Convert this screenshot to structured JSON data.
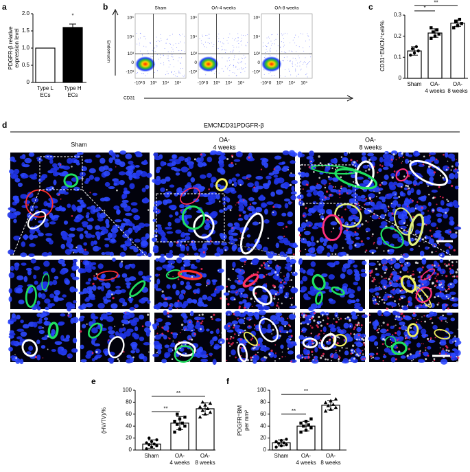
{
  "chart_data": [
    {
      "panel": "a",
      "type": "bar",
      "categories": [
        [
          "Type L",
          "ECs"
        ],
        [
          "Type H",
          "ECs"
        ]
      ],
      "values": [
        1.0,
        1.6
      ],
      "errors": [
        null,
        0.1
      ],
      "colors": [
        "#ffffff",
        "#000000"
      ],
      "ylabel": [
        "PDGFR-β relative",
        "expression level"
      ],
      "ylim": [
        0,
        2
      ],
      "yticks": [
        0,
        0.5,
        {
          "value": 1,
          "label": "1.0"
        },
        1.5,
        {
          "value": 2,
          "label": "2.0"
        }
      ],
      "annotations": [
        "*"
      ]
    },
    {
      "panel": "c",
      "type": "bar",
      "categories": [
        [
          "Sham"
        ],
        [
          "OA-",
          "4 weeks"
        ],
        [
          "OA-",
          "8 weeks"
        ]
      ],
      "values": [
        0.13,
        0.215,
        0.262
      ],
      "errors": [
        0.02,
        0.02,
        0.015
      ],
      "points": [
        [
          0.11,
          0.12,
          0.13,
          0.14,
          0.15
        ],
        [
          0.19,
          0.2,
          0.21,
          0.22,
          0.23,
          0.24
        ],
        [
          0.24,
          0.25,
          0.26,
          0.27,
          0.28
        ]
      ],
      "markers": [
        "circle",
        "square",
        "square"
      ],
      "colors": [
        "#ffffff",
        "#ffffff",
        "#ffffff"
      ],
      "ylabel": [
        "CD31⁺EMCN⁺cell/%"
      ],
      "ylim": [
        0,
        0.3
      ],
      "yticks": [
        0,
        0.1,
        0.2,
        0.3
      ],
      "annotations": [
        "*",
        "**"
      ]
    },
    {
      "panel": "e",
      "type": "bar",
      "categories": [
        [
          "Sham"
        ],
        [
          "OA-",
          "4 weeks"
        ],
        [
          "OA-",
          "8 weeks"
        ]
      ],
      "values": [
        10,
        45,
        69
      ],
      "errors": [
        7,
        11,
        10
      ],
      "points": [
        [
          2,
          5,
          7,
          9,
          10,
          12,
          14,
          17,
          20
        ],
        [
          30,
          35,
          40,
          43,
          45,
          48,
          52,
          55,
          60
        ],
        [
          55,
          60,
          63,
          66,
          69,
          72,
          75,
          78,
          80
        ]
      ],
      "markers": [
        "circle",
        "square",
        "triangle"
      ],
      "colors": [
        "#ffffff",
        "#ffffff",
        "#ffffff"
      ],
      "ylabel": [
        "(HV/TV)/%"
      ],
      "ylim": [
        0,
        100
      ],
      "yticks": [
        0,
        20,
        40,
        60,
        80,
        100
      ],
      "annotations": [
        "**",
        "**"
      ]
    },
    {
      "panel": "f",
      "type": "bar",
      "categories": [
        [
          "Sham"
        ],
        [
          "OA-",
          "4 weeks"
        ],
        [
          "OA-",
          "8 weeks"
        ]
      ],
      "values": [
        12,
        40,
        75
      ],
      "errors": [
        5,
        8,
        8
      ],
      "points": [
        [
          5,
          7,
          9,
          11,
          12,
          14,
          16,
          18
        ],
        [
          30,
          33,
          37,
          40,
          42,
          45,
          48,
          52
        ],
        [
          65,
          68,
          71,
          74,
          76,
          79,
          82,
          85
        ]
      ],
      "markers": [
        "circle",
        "square",
        "triangle"
      ],
      "colors": [
        "#ffffff",
        "#ffffff",
        "#ffffff"
      ],
      "ylabel": [
        "PDGFR⁺BM",
        "per mm²"
      ],
      "ylim": [
        0,
        100
      ],
      "yticks": [
        0,
        20,
        40,
        60,
        80,
        100
      ],
      "annotations": [
        "**",
        "**"
      ]
    }
  ],
  "figure": {
    "b": {
      "label": "b",
      "titles": [
        "Sham",
        "OA-4 weeks",
        "OA-8 weeks"
      ],
      "y_axis": "Endomucin",
      "x_axis": "CD31",
      "y_ticks": [
        "10⁵",
        "10⁴",
        "10³",
        "0",
        "-10³"
      ],
      "x_ticks": [
        "-10³",
        "0",
        "10³",
        "10⁴",
        "10⁵"
      ]
    },
    "d": {
      "label": "d",
      "legend": [
        {
          "text": "EMCN",
          "color": "#00b050"
        },
        {
          "text": "CD31",
          "color": "#e00000"
        },
        {
          "text": "PDGFR-β",
          "color": "#c8c8c8"
        }
      ],
      "columns": [
        [
          "Sham"
        ],
        [
          "OA-",
          "4 weeks"
        ],
        [
          "OA-",
          "8 weeks"
        ]
      ]
    }
  }
}
